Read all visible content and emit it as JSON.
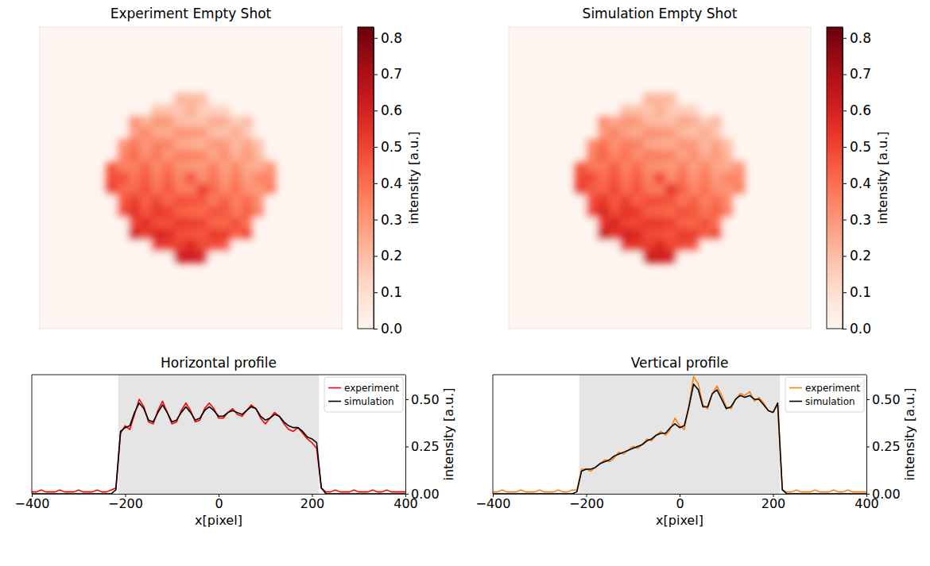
{
  "chart_data": [
    {
      "type": "heatmap",
      "title": "Experiment Empty Shot",
      "color": "Reds",
      "tick_labels": false,
      "xlim": [
        -400,
        400
      ],
      "ylim": [
        -400,
        400
      ],
      "x": [
        -210,
        -180,
        -150,
        -120,
        -90,
        -60,
        -30,
        0,
        30,
        60,
        90,
        120,
        150,
        180,
        210
      ],
      "y": [
        -210,
        -180,
        -150,
        -120,
        -90,
        -60,
        -30,
        0,
        30,
        60,
        90,
        120,
        150,
        180,
        210
      ],
      "values": [
        [
          0,
          0,
          0,
          0,
          0,
          0,
          0.22,
          0.21,
          0.2,
          0,
          0,
          0,
          0,
          0,
          0
        ],
        [
          0,
          0,
          0,
          0,
          0.19,
          0.18,
          0.17,
          0.24,
          0.15,
          0.14,
          0.13,
          0,
          0,
          0,
          0
        ],
        [
          0,
          0,
          0.32,
          0.23,
          0.3,
          0.29,
          0.2,
          0.19,
          0.18,
          0.25,
          0.24,
          0.15,
          0.21,
          0,
          0
        ],
        [
          0,
          0,
          0.27,
          0.34,
          0.25,
          0.24,
          0.31,
          0.3,
          0.29,
          0.2,
          0.18,
          0.25,
          0.16,
          0,
          0
        ],
        [
          0,
          0.31,
          0.38,
          0.29,
          0.36,
          0.35,
          0.26,
          0.24,
          0.23,
          0.3,
          0.29,
          0.2,
          0.27,
          0.18,
          0
        ],
        [
          0,
          0.34,
          0.41,
          0.32,
          0.38,
          0.29,
          0.36,
          0.35,
          0.34,
          0.25,
          0.32,
          0.23,
          0.3,
          0.21,
          0
        ],
        [
          0.46,
          0.36,
          0.35,
          0.42,
          0.33,
          0.4,
          0.31,
          0.3,
          0.29,
          0.36,
          0.27,
          0.34,
          0.25,
          0.24,
          0.31
        ],
        [
          0.48,
          0.47,
          0.38,
          0.45,
          0.36,
          0.43,
          0.34,
          0.47,
          0.32,
          0.39,
          0.3,
          0.37,
          0.28,
          0.35,
          0.34
        ],
        [
          0.51,
          0.42,
          0.41,
          0.48,
          0.39,
          0.46,
          0.37,
          0.36,
          0.52,
          0.42,
          0.33,
          0.4,
          0.31,
          0.3,
          0.37
        ],
        [
          0,
          0.45,
          0.52,
          0.43,
          0.5,
          0.41,
          0.48,
          0.47,
          0.46,
          0.37,
          0.44,
          0.35,
          0.41,
          0.32,
          0
        ],
        [
          0,
          0.48,
          0.55,
          0.46,
          0.53,
          0.52,
          0.43,
          0.42,
          0.41,
          0.47,
          0.46,
          0.37,
          0.44,
          0.35,
          0
        ],
        [
          0,
          0,
          0.5,
          0.57,
          0.48,
          0.47,
          0.53,
          0.52,
          0.51,
          0.42,
          0.41,
          0.48,
          0.39,
          0,
          0
        ],
        [
          0,
          0,
          0.61,
          0.51,
          0.58,
          0.57,
          0.48,
          0.47,
          0.46,
          0.53,
          0.52,
          0.43,
          0.5,
          0,
          0
        ],
        [
          0,
          0,
          0,
          0,
          0.53,
          0.52,
          0.51,
          0.58,
          0.49,
          0.48,
          0.47,
          0,
          0,
          0,
          0
        ],
        [
          0,
          0,
          0,
          0,
          0,
          0,
          0.62,
          0.61,
          0.6,
          0,
          0,
          0,
          0,
          0,
          0
        ]
      ],
      "colorbar": {
        "range": [
          0,
          0.83
        ],
        "label": "intensity [a.u.]",
        "ticks": [
          {
            "value": 0,
            "label": "0.0"
          },
          0.1,
          0.2,
          0.3,
          0.4,
          0.5,
          0.6,
          0.7,
          0.8
        ]
      }
    },
    {
      "type": "heatmap",
      "title": "Simulation Empty Shot",
      "color": "Reds",
      "tick_labels": false,
      "xlim": [
        -400,
        400
      ],
      "ylim": [
        -400,
        400
      ],
      "x": [
        -210,
        -180,
        -150,
        -120,
        -90,
        -60,
        -30,
        0,
        30,
        60,
        90,
        120,
        150,
        180,
        210
      ],
      "y": [
        -210,
        -180,
        -150,
        -120,
        -90,
        -60,
        -30,
        0,
        30,
        60,
        90,
        120,
        150,
        180,
        210
      ],
      "values": [
        [
          0,
          0,
          0,
          0,
          0,
          0,
          0.23,
          0.22,
          0.21,
          0,
          0,
          0,
          0,
          0,
          0
        ],
        [
          0,
          0,
          0,
          0,
          0.2,
          0.19,
          0.18,
          0.24,
          0.16,
          0.15,
          0.14,
          0,
          0,
          0,
          0
        ],
        [
          0,
          0,
          0.33,
          0.25,
          0.31,
          0.3,
          0.21,
          0.2,
          0.19,
          0.26,
          0.24,
          0.16,
          0.21,
          0,
          0
        ],
        [
          0,
          0,
          0.29,
          0.35,
          0.27,
          0.25,
          0.32,
          0.31,
          0.29,
          0.21,
          0.19,
          0.25,
          0.17,
          0,
          0
        ],
        [
          0,
          0.33,
          0.4,
          0.31,
          0.37,
          0.36,
          0.27,
          0.25,
          0.24,
          0.31,
          0.29,
          0.21,
          0.27,
          0.19,
          0
        ],
        [
          0,
          0.36,
          0.43,
          0.34,
          0.4,
          0.31,
          0.37,
          0.36,
          0.35,
          0.26,
          0.32,
          0.24,
          0.3,
          0.22,
          0
        ],
        [
          0.47,
          0.38,
          0.37,
          0.44,
          0.35,
          0.41,
          0.32,
          0.31,
          0.3,
          0.36,
          0.28,
          0.34,
          0.26,
          0.25,
          0.31
        ],
        [
          0.5,
          0.49,
          0.4,
          0.47,
          0.38,
          0.44,
          0.35,
          0.5,
          0.33,
          0.4,
          0.31,
          0.37,
          0.29,
          0.35,
          0.34
        ],
        [
          0.53,
          0.44,
          0.43,
          0.5,
          0.41,
          0.47,
          0.38,
          0.37,
          0.55,
          0.43,
          0.34,
          0.4,
          0.32,
          0.31,
          0.37
        ],
        [
          0,
          0.47,
          0.54,
          0.45,
          0.52,
          0.43,
          0.49,
          0.48,
          0.47,
          0.38,
          0.44,
          0.36,
          0.41,
          0.33,
          0
        ],
        [
          0,
          0.51,
          0.58,
          0.48,
          0.55,
          0.53,
          0.44,
          0.43,
          0.42,
          0.48,
          0.46,
          0.38,
          0.44,
          0.36,
          0
        ],
        [
          0,
          0,
          0.53,
          0.6,
          0.5,
          0.49,
          0.54,
          0.53,
          0.51,
          0.43,
          0.42,
          0.48,
          0.4,
          0,
          0
        ],
        [
          0,
          0,
          0.63,
          0.54,
          0.6,
          0.58,
          0.49,
          0.48,
          0.47,
          0.53,
          0.52,
          0.44,
          0.5,
          0,
          0
        ],
        [
          0,
          0,
          0,
          0,
          0.55,
          0.54,
          0.52,
          0.58,
          0.5,
          0.49,
          0.47,
          0,
          0,
          0,
          0
        ],
        [
          0,
          0,
          0,
          0,
          0,
          0,
          0.63,
          0.62,
          0.6,
          0,
          0,
          0,
          0,
          0,
          0
        ]
      ],
      "colorbar": {
        "range": [
          0,
          0.83
        ],
        "label": "intensity [a.u.]",
        "ticks": [
          {
            "value": 0,
            "label": "0.0"
          },
          0.1,
          0.2,
          0.3,
          0.4,
          0.5,
          0.6,
          0.7,
          0.8
        ]
      }
    },
    {
      "type": "line",
      "title": "Horizontal profile",
      "xlabel": "x[pixel]",
      "ylabel": "intensity [a.u.]",
      "xlim": [
        -400,
        400
      ],
      "ylim": [
        0,
        0.63
      ],
      "xticks": [
        {
          "value": -400,
          "label": "−400"
        },
        {
          "value": -200,
          "label": "−200"
        },
        0,
        200,
        400
      ],
      "yticks": [
        {
          "value": 0,
          "label": "0.00"
        },
        0.25,
        {
          "value": 0.5,
          "label": "0.50"
        }
      ],
      "legend": "upper right",
      "shaded_range": [
        -215,
        215
      ],
      "x": [
        -400,
        -390,
        -380,
        -370,
        -360,
        -350,
        -340,
        -330,
        -320,
        -310,
        -300,
        -290,
        -280,
        -270,
        -260,
        -250,
        -240,
        -230,
        -220,
        -210,
        -200,
        -190,
        -180,
        -170,
        -160,
        -150,
        -140,
        -130,
        -120,
        -110,
        -100,
        -90,
        -80,
        -70,
        -60,
        -50,
        -40,
        -30,
        -20,
        -10,
        0,
        10,
        20,
        30,
        40,
        50,
        60,
        70,
        80,
        90,
        100,
        110,
        120,
        130,
        140,
        150,
        160,
        170,
        180,
        190,
        200,
        210,
        220,
        230,
        240,
        250,
        260,
        270,
        280,
        290,
        300,
        310,
        320,
        330,
        340,
        350,
        360,
        370,
        380,
        390,
        400
      ],
      "series": [
        {
          "name": "experiment",
          "color": "#ff0000",
          "values": [
            0.01,
            0.01,
            0.02,
            0.01,
            0.01,
            0.01,
            0.02,
            0.01,
            0.01,
            0.01,
            0.02,
            0.01,
            0.01,
            0.01,
            0.02,
            0.01,
            0.01,
            0.02,
            0.03,
            0.32,
            0.36,
            0.34,
            0.42,
            0.5,
            0.46,
            0.38,
            0.37,
            0.44,
            0.49,
            0.43,
            0.37,
            0.38,
            0.44,
            0.48,
            0.44,
            0.38,
            0.39,
            0.45,
            0.48,
            0.45,
            0.4,
            0.4,
            0.43,
            0.45,
            0.42,
            0.41,
            0.44,
            0.47,
            0.45,
            0.4,
            0.37,
            0.4,
            0.43,
            0.41,
            0.37,
            0.34,
            0.33,
            0.35,
            0.32,
            0.29,
            0.27,
            0.24,
            0.03,
            0.01,
            0.01,
            0.02,
            0.01,
            0.01,
            0.01,
            0.02,
            0.01,
            0.01,
            0.01,
            0.02,
            0.01,
            0.01,
            0.02,
            0.01,
            0.01,
            0.01,
            0.01
          ]
        },
        {
          "name": "simulation",
          "color": "#000000",
          "values": [
            0,
            0,
            0,
            0,
            0,
            0,
            0,
            0,
            0,
            0,
            0,
            0,
            0,
            0,
            0,
            0,
            0,
            0,
            0.02,
            0.33,
            0.35,
            0.36,
            0.43,
            0.48,
            0.45,
            0.39,
            0.38,
            0.43,
            0.47,
            0.43,
            0.38,
            0.39,
            0.43,
            0.46,
            0.43,
            0.39,
            0.4,
            0.44,
            0.46,
            0.44,
            0.41,
            0.41,
            0.43,
            0.44,
            0.43,
            0.42,
            0.44,
            0.46,
            0.45,
            0.41,
            0.39,
            0.4,
            0.42,
            0.41,
            0.38,
            0.36,
            0.35,
            0.35,
            0.33,
            0.3,
            0.29,
            0.27,
            0.03,
            0,
            0,
            0,
            0,
            0,
            0,
            0,
            0,
            0,
            0,
            0,
            0,
            0,
            0,
            0,
            0,
            0,
            0
          ]
        }
      ]
    },
    {
      "type": "line",
      "title": "Vertical profile",
      "xlabel": "x[pixel]",
      "ylabel": "intensity [a.u.]",
      "xlim": [
        -400,
        400
      ],
      "ylim": [
        0,
        0.63
      ],
      "xticks": [
        {
          "value": -400,
          "label": "−400"
        },
        {
          "value": -200,
          "label": "−200"
        },
        0,
        200,
        400
      ],
      "yticks": [
        {
          "value": 0,
          "label": "0.00"
        },
        0.25,
        {
          "value": 0.5,
          "label": "0.50"
        }
      ],
      "legend": "upper right",
      "shaded_range": [
        -215,
        215
      ],
      "x": [
        -400,
        -390,
        -380,
        -370,
        -360,
        -350,
        -340,
        -330,
        -320,
        -310,
        -300,
        -290,
        -280,
        -270,
        -260,
        -250,
        -240,
        -230,
        -220,
        -210,
        -200,
        -190,
        -180,
        -170,
        -160,
        -150,
        -140,
        -130,
        -120,
        -110,
        -100,
        -90,
        -80,
        -70,
        -60,
        -50,
        -40,
        -30,
        -20,
        -10,
        0,
        10,
        20,
        30,
        40,
        50,
        60,
        70,
        80,
        90,
        100,
        110,
        120,
        130,
        140,
        150,
        160,
        170,
        180,
        190,
        200,
        210,
        220,
        230,
        240,
        250,
        260,
        270,
        280,
        290,
        300,
        310,
        320,
        330,
        340,
        350,
        360,
        370,
        380,
        390,
        400
      ],
      "series": [
        {
          "name": "experiment",
          "color": "#ff7f0e",
          "values": [
            0.01,
            0.01,
            0.02,
            0.01,
            0.01,
            0.01,
            0.02,
            0.01,
            0.01,
            0.01,
            0.02,
            0.01,
            0.01,
            0.01,
            0.02,
            0.01,
            0.01,
            0.02,
            0.02,
            0.13,
            0.13,
            0.12,
            0.14,
            0.16,
            0.18,
            0.17,
            0.19,
            0.22,
            0.21,
            0.23,
            0.25,
            0.24,
            0.26,
            0.29,
            0.28,
            0.31,
            0.33,
            0.31,
            0.34,
            0.4,
            0.36,
            0.34,
            0.47,
            0.62,
            0.58,
            0.47,
            0.45,
            0.53,
            0.57,
            0.52,
            0.46,
            0.45,
            0.5,
            0.53,
            0.52,
            0.54,
            0.49,
            0.51,
            0.48,
            0.44,
            0.43,
            0.47,
            0.02,
            0.01,
            0.01,
            0.02,
            0.01,
            0.01,
            0.01,
            0.02,
            0.01,
            0.01,
            0.01,
            0.02,
            0.01,
            0.01,
            0.02,
            0.01,
            0.01,
            0.01,
            0.01
          ]
        },
        {
          "name": "simulation",
          "color": "#000000",
          "values": [
            0,
            0,
            0,
            0,
            0,
            0,
            0,
            0,
            0,
            0,
            0,
            0,
            0,
            0,
            0,
            0,
            0,
            0,
            0.01,
            0.12,
            0.13,
            0.13,
            0.14,
            0.16,
            0.17,
            0.18,
            0.2,
            0.21,
            0.22,
            0.23,
            0.24,
            0.25,
            0.26,
            0.28,
            0.29,
            0.31,
            0.32,
            0.32,
            0.35,
            0.37,
            0.35,
            0.36,
            0.46,
            0.58,
            0.55,
            0.46,
            0.46,
            0.53,
            0.55,
            0.5,
            0.45,
            0.46,
            0.5,
            0.52,
            0.51,
            0.52,
            0.5,
            0.5,
            0.47,
            0.44,
            0.43,
            0.48,
            0.02,
            0,
            0,
            0,
            0,
            0,
            0,
            0,
            0,
            0,
            0,
            0,
            0,
            0,
            0,
            0,
            0,
            0,
            0
          ]
        }
      ]
    }
  ]
}
